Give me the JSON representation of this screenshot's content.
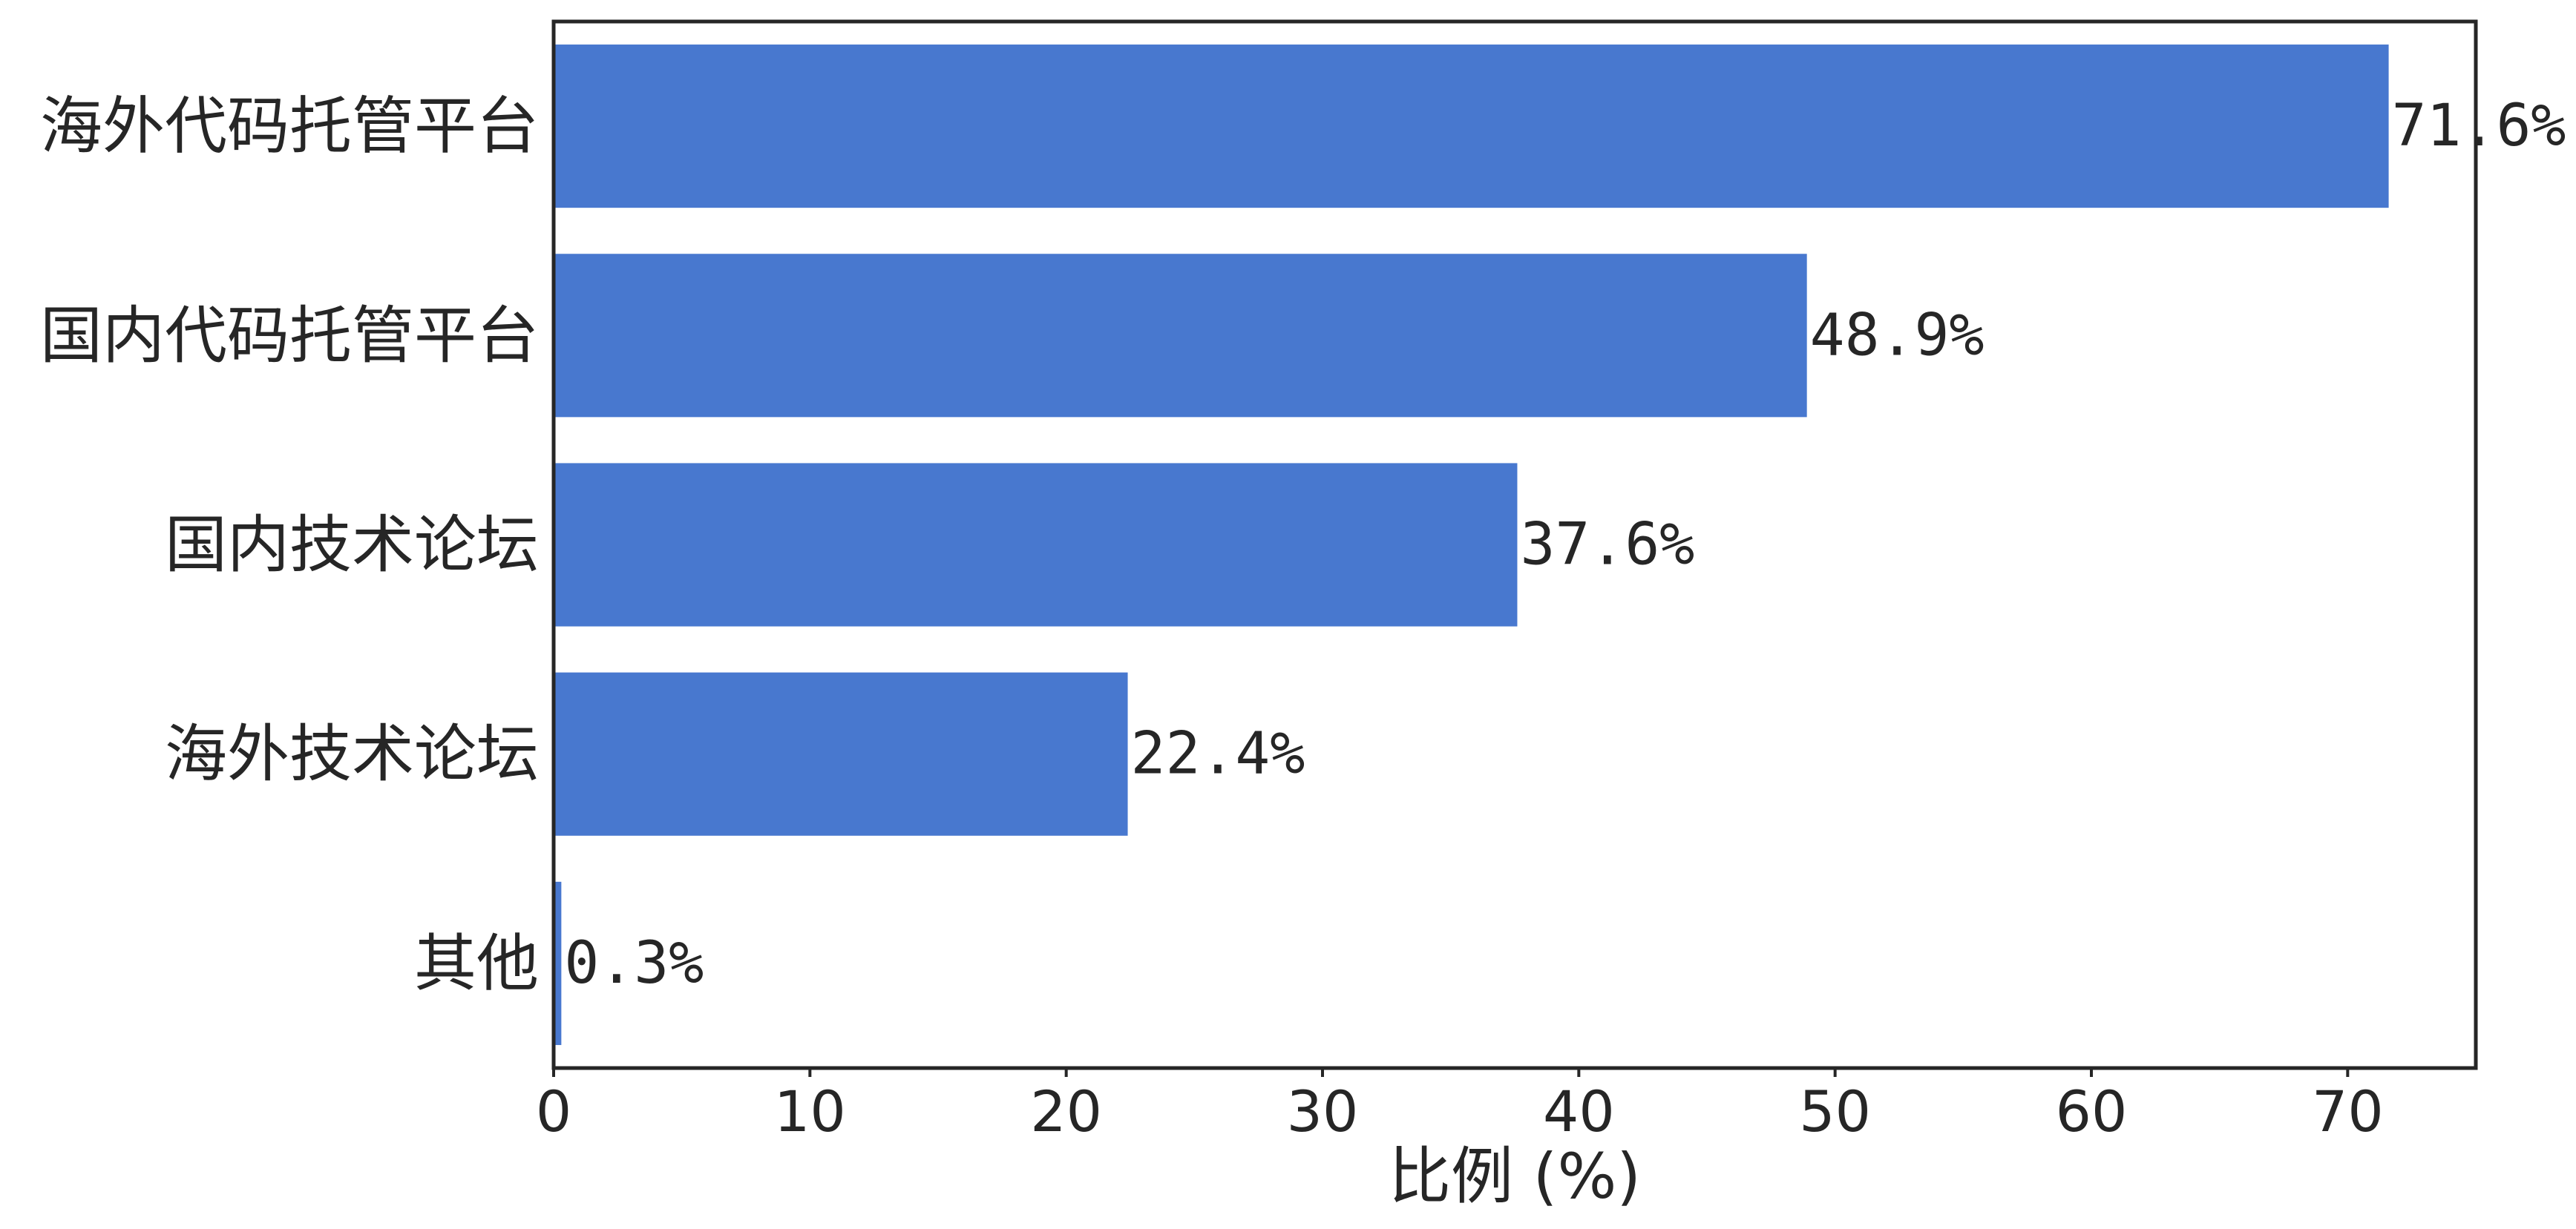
{
  "chart_data": {
    "type": "bar",
    "orientation": "horizontal",
    "categories": [
      "海外代码托管平台",
      "国内代码托管平台",
      "国内技术论坛",
      "海外技术论坛",
      "其他"
    ],
    "values": [
      71.6,
      48.9,
      37.6,
      22.4,
      0.3
    ],
    "value_labels": [
      "71.6%",
      "48.9%",
      "37.6%",
      "22.4%",
      "0.3%"
    ],
    "title": "",
    "xlabel": "比例 (%)",
    "ylabel": "",
    "xlim": [
      0,
      75
    ],
    "xticks": [
      0,
      10,
      20,
      30,
      40,
      50,
      60,
      70
    ],
    "grid": false,
    "bar_color": "#4878cf"
  }
}
